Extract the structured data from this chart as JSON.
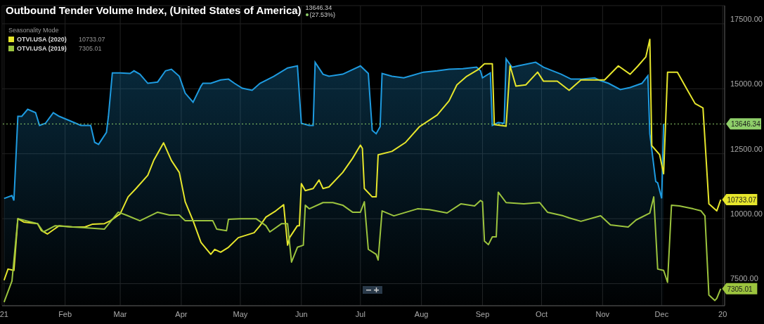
{
  "chart_data": {
    "type": "line",
    "title": "Outbound Tender Volume Index, (United States of America)",
    "annotations": [
      "13646.34",
      "(27.53%)"
    ],
    "legend_title": "Seasonality Mode",
    "legend": "top left",
    "grid": true,
    "xlim": [
      "2020-12-31",
      "2022-01-02"
    ],
    "xticks": [
      {
        "value": "2021-01-01",
        "label": "21"
      },
      {
        "value": "2021-02-01",
        "label": "Feb"
      },
      {
        "value": "2021-03-01",
        "label": "Mar"
      },
      {
        "value": "2021-04-01",
        "label": "Apr"
      },
      {
        "value": "2021-05-01",
        "label": "May"
      },
      {
        "value": "2021-06-01",
        "label": "Jun"
      },
      {
        "value": "2021-07-01",
        "label": "Jul"
      },
      {
        "value": "2021-08-01",
        "label": "Aug"
      },
      {
        "value": "2021-09-01",
        "label": "Sep"
      },
      {
        "value": "2021-10-01",
        "label": "Oct"
      },
      {
        "value": "2021-11-01",
        "label": "Nov"
      },
      {
        "value": "2021-12-01",
        "label": "Dec"
      },
      {
        "value": "2022-01-01",
        "label": "20"
      }
    ],
    "ylim": [
      6650,
      18200
    ],
    "yticks": [
      {
        "value": 7500,
        "label": "7500.00"
      },
      {
        "value": 10000,
        "label": "10000.00"
      },
      {
        "value": 12500,
        "label": "12500.00"
      },
      {
        "value": 15000,
        "label": "15000.00"
      },
      {
        "value": 17500,
        "label": "17500.00"
      }
    ],
    "ref_lines": [
      {
        "axis": "y",
        "value": 13646.34,
        "label": "13646.34",
        "color": "#8fcf6a",
        "line_style": "dotted"
      }
    ],
    "series": [
      {
        "type": "area",
        "color": "#1e9be0",
        "x": [
          "2021-01-01",
          "2021-01-05",
          "2021-01-06",
          "2021-01-08",
          "2021-01-10",
          "2021-01-13",
          "2021-01-17",
          "2021-01-19",
          "2021-01-22",
          "2021-01-26",
          "2021-01-29",
          "2021-02-04",
          "2021-02-09",
          "2021-02-14",
          "2021-02-16",
          "2021-02-18",
          "2021-02-22",
          "2021-02-23",
          "2021-02-25",
          "2021-03-01",
          "2021-03-06",
          "2021-03-08",
          "2021-03-11",
          "2021-03-15",
          "2021-03-20",
          "2021-03-24",
          "2021-03-27",
          "2021-03-31",
          "2021-04-03",
          "2021-04-07",
          "2021-04-11",
          "2021-04-12",
          "2021-04-16",
          "2021-04-21",
          "2021-04-25",
          "2021-04-28",
          "2021-05-02",
          "2021-05-07",
          "2021-05-11",
          "2021-05-18",
          "2021-05-25",
          "2021-05-30",
          "2021-06-01",
          "2021-06-05",
          "2021-06-07",
          "2021-06-08",
          "2021-06-12",
          "2021-06-15",
          "2021-06-22",
          "2021-07-01",
          "2021-07-05",
          "2021-07-07",
          "2021-07-09",
          "2021-07-11",
          "2021-07-12",
          "2021-07-17",
          "2021-07-23",
          "2021-07-28",
          "2021-08-02",
          "2021-08-09",
          "2021-08-15",
          "2021-08-22",
          "2021-08-29",
          "2021-08-31",
          "2021-09-01",
          "2021-09-05",
          "2021-09-06",
          "2021-09-09",
          "2021-09-12",
          "2021-09-13",
          "2021-09-16",
          "2021-09-19",
          "2021-09-28",
          "2021-10-02",
          "2021-10-11",
          "2021-10-16",
          "2021-10-21",
          "2021-10-28",
          "2021-10-30",
          "2021-11-04",
          "2021-11-10",
          "2021-11-15",
          "2021-11-21",
          "2021-11-24",
          "2021-11-25",
          "2021-11-28",
          "2021-11-29",
          "2021-12-01",
          "2021-12-02"
        ],
        "values": [
          10780,
          10890,
          10700,
          13940,
          13940,
          14210,
          14080,
          13590,
          13670,
          14080,
          13940,
          13750,
          13590,
          13590,
          12940,
          12860,
          13320,
          13940,
          15610,
          15610,
          15590,
          15690,
          15560,
          15210,
          15260,
          15690,
          15750,
          15480,
          14830,
          14480,
          15100,
          15210,
          15210,
          15340,
          15370,
          15210,
          15020,
          14940,
          15210,
          15480,
          15800,
          15880,
          13670,
          13590,
          13590,
          16020,
          15560,
          15480,
          15560,
          15880,
          15590,
          13400,
          13270,
          13540,
          15590,
          15480,
          15420,
          15530,
          15640,
          15690,
          15750,
          15770,
          15830,
          15690,
          15420,
          15610,
          13590,
          13700,
          13670,
          16150,
          15830,
          15880,
          16020,
          15830,
          15560,
          15370,
          15370,
          15420,
          15340,
          15210,
          14970,
          15050,
          15210,
          15500,
          13270,
          11430,
          11380,
          10780,
          13650
        ]
      },
      {
        "name": "OTVI.USA (2020)",
        "color": "#e6e62c",
        "x": [
          "2021-01-01",
          "2021-01-03",
          "2021-01-06",
          "2021-01-08",
          "2021-01-11",
          "2021-01-18",
          "2021-01-20",
          "2021-01-23",
          "2021-01-26",
          "2021-01-29",
          "2021-02-05",
          "2021-02-11",
          "2021-02-15",
          "2021-02-21",
          "2021-02-24",
          "2021-03-01",
          "2021-03-05",
          "2021-03-09",
          "2021-03-15",
          "2021-03-18",
          "2021-03-23",
          "2021-03-27",
          "2021-03-31",
          "2021-04-03",
          "2021-04-07",
          "2021-04-11",
          "2021-04-16",
          "2021-04-18",
          "2021-04-21",
          "2021-04-25",
          "2021-04-30",
          "2021-05-08",
          "2021-05-11",
          "2021-05-14",
          "2021-05-19",
          "2021-05-23",
          "2021-05-25",
          "2021-05-26",
          "2021-05-30",
          "2021-05-31",
          "2021-06-01",
          "2021-06-03",
          "2021-06-07",
          "2021-06-10",
          "2021-06-12",
          "2021-06-15",
          "2021-06-22",
          "2021-06-27",
          "2021-07-01",
          "2021-07-02",
          "2021-07-03",
          "2021-07-07",
          "2021-07-09",
          "2021-07-10",
          "2021-07-17",
          "2021-07-24",
          "2021-07-31",
          "2021-08-09",
          "2021-08-15",
          "2021-08-19",
          "2021-08-24",
          "2021-08-30",
          "2021-09-02",
          "2021-09-06",
          "2021-09-07",
          "2021-09-13",
          "2021-09-15",
          "2021-09-18",
          "2021-09-23",
          "2021-09-29",
          "2021-10-02",
          "2021-10-09",
          "2021-10-15",
          "2021-10-21",
          "2021-11-02",
          "2021-11-09",
          "2021-11-15",
          "2021-11-19",
          "2021-11-23",
          "2021-11-25",
          "2021-11-26",
          "2021-11-30",
          "2021-12-02",
          "2021-12-04",
          "2021-12-09",
          "2021-12-14",
          "2021-12-18",
          "2021-12-22",
          "2021-12-25",
          "2021-12-29",
          "2021-12-31"
        ],
        "values": [
          7630,
          8060,
          8010,
          10000,
          9870,
          9810,
          9540,
          9410,
          9570,
          9730,
          9680,
          9680,
          9790,
          9810,
          9920,
          10190,
          10840,
          11160,
          11670,
          12240,
          12920,
          12240,
          11780,
          10650,
          9920,
          9090,
          8630,
          8820,
          8710,
          8900,
          9270,
          9460,
          9730,
          10060,
          10300,
          10540,
          8980,
          9270,
          9730,
          9730,
          11350,
          11080,
          11160,
          11490,
          11160,
          11220,
          11780,
          12320,
          12830,
          12700,
          11160,
          10840,
          10840,
          12460,
          12590,
          12940,
          13540,
          13990,
          14530,
          15150,
          15480,
          15750,
          15960,
          15960,
          13620,
          13560,
          15880,
          15100,
          15150,
          15640,
          15290,
          15290,
          14940,
          15340,
          15340,
          15880,
          15560,
          15880,
          16230,
          16900,
          12810,
          12460,
          11730,
          15640,
          15640,
          14960,
          14430,
          14260,
          10570,
          10300,
          10733.07
        ],
        "value_labels": [
          null,
          null,
          null,
          null,
          null,
          null,
          null,
          null,
          null,
          null,
          null,
          null,
          null,
          null,
          null,
          null,
          null,
          null,
          null,
          null,
          null,
          null,
          null,
          null,
          null,
          null,
          null,
          null,
          null,
          null,
          null,
          null,
          null,
          null,
          null,
          null,
          null,
          null,
          null,
          null,
          null,
          null,
          null,
          null,
          null,
          null,
          null,
          null,
          null,
          null,
          null,
          null,
          null,
          null,
          null,
          null,
          null,
          null,
          null,
          null,
          null,
          null,
          null,
          null,
          null,
          null,
          null,
          null,
          null,
          null,
          null,
          null,
          null,
          null,
          null,
          null,
          null,
          null,
          null,
          null,
          null,
          null,
          null,
          null,
          null,
          null,
          null,
          null,
          null,
          null,
          "10733.07"
        ]
      },
      {
        "name": "OTVI.USA (2019)",
        "color": "#9cc43e",
        "x": [
          "2021-01-01",
          "2021-01-05",
          "2021-01-08",
          "2021-01-18",
          "2021-01-21",
          "2021-01-27",
          "2021-02-05",
          "2021-02-11",
          "2021-02-21",
          "2021-02-28",
          "2021-03-04",
          "2021-03-11",
          "2021-03-20",
          "2021-03-26",
          "2021-03-31",
          "2021-04-03",
          "2021-04-09",
          "2021-04-17",
          "2021-04-19",
          "2021-04-24",
          "2021-04-25",
          "2021-05-01",
          "2021-05-09",
          "2021-05-14",
          "2021-05-16",
          "2021-05-22",
          "2021-05-25",
          "2021-05-27",
          "2021-05-30",
          "2021-06-02",
          "2021-06-03",
          "2021-06-05",
          "2021-06-12",
          "2021-06-17",
          "2021-06-22",
          "2021-06-27",
          "2021-07-01",
          "2021-07-03",
          "2021-07-05",
          "2021-07-09",
          "2021-07-10",
          "2021-07-12",
          "2021-07-18",
          "2021-07-30",
          "2021-08-05",
          "2021-08-14",
          "2021-08-21",
          "2021-08-28",
          "2021-08-31",
          "2021-09-01",
          "2021-09-02",
          "2021-09-04",
          "2021-09-06",
          "2021-09-08",
          "2021-09-09",
          "2021-09-13",
          "2021-09-22",
          "2021-09-30",
          "2021-10-04",
          "2021-10-12",
          "2021-10-15",
          "2021-10-21",
          "2021-10-31",
          "2021-11-05",
          "2021-11-14",
          "2021-11-18",
          "2021-11-25",
          "2021-11-27",
          "2021-11-29",
          "2021-12-02",
          "2021-12-04",
          "2021-12-06",
          "2021-12-10",
          "2021-12-17",
          "2021-12-21",
          "2021-12-23",
          "2021-12-25",
          "2021-12-28",
          "2021-12-29",
          "2021-12-31"
        ],
        "values": [
          6790,
          7600,
          10000,
          9810,
          9490,
          9730,
          9680,
          9650,
          9600,
          10250,
          10140,
          9920,
          10250,
          10140,
          10140,
          9920,
          9920,
          9920,
          9600,
          9540,
          9980,
          10000,
          10000,
          9730,
          9490,
          9810,
          9810,
          8330,
          8900,
          8980,
          10520,
          10380,
          10620,
          10620,
          10520,
          10250,
          10250,
          10650,
          8820,
          8630,
          8410,
          10300,
          10110,
          10380,
          10350,
          10220,
          10570,
          10490,
          10700,
          10650,
          9140,
          9000,
          9300,
          9300,
          11020,
          10620,
          10570,
          10620,
          10250,
          10110,
          10030,
          9900,
          10110,
          9760,
          9680,
          9950,
          10220,
          10840,
          8060,
          8010,
          7550,
          10520,
          10490,
          10380,
          10300,
          10110,
          7060,
          6850,
          6930,
          7305.01
        ],
        "value_labels": [
          null,
          null,
          null,
          null,
          null,
          null,
          null,
          null,
          null,
          null,
          null,
          null,
          null,
          null,
          null,
          null,
          null,
          null,
          null,
          null,
          null,
          null,
          null,
          null,
          null,
          null,
          null,
          null,
          null,
          null,
          null,
          null,
          null,
          null,
          null,
          null,
          null,
          null,
          null,
          null,
          null,
          null,
          null,
          null,
          null,
          null,
          null,
          null,
          null,
          null,
          null,
          null,
          null,
          null,
          null,
          null,
          null,
          null,
          null,
          null,
          null,
          null,
          null,
          null,
          null,
          null,
          null,
          null,
          null,
          null,
          null,
          null,
          null,
          null,
          null,
          null,
          null,
          null,
          null,
          "7305.01"
        ]
      }
    ]
  }
}
